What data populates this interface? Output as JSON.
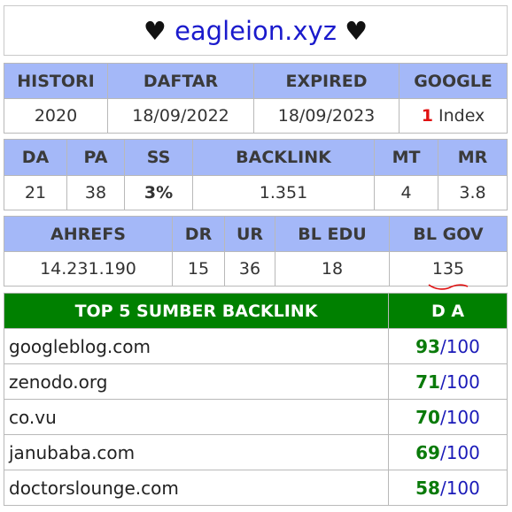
{
  "header": {
    "heart": "♥",
    "domain": "eagleion.xyz"
  },
  "table1": {
    "headers": [
      "HISTORI",
      "DAFTAR",
      "EXPIRED",
      "GOOGLE"
    ],
    "values": {
      "histori": "2020",
      "daftar": "18/09/2022",
      "expired": "18/09/2023",
      "google_count": "1",
      "google_label": "Index"
    }
  },
  "table2": {
    "headers": [
      "DA",
      "PA",
      "SS",
      "BACKLINK",
      "MT",
      "MR"
    ],
    "values": {
      "da": "21",
      "pa": "38",
      "ss": "3%",
      "backlink": "1.351",
      "mt": "4",
      "mr": "3.8"
    }
  },
  "table3": {
    "headers": [
      "AHREFS",
      "DR",
      "UR",
      "BL EDU",
      "BL GOV"
    ],
    "values": {
      "ahrefs": "14.231.190",
      "dr": "15",
      "ur": "36",
      "bl_edu": "18",
      "bl_gov": "135"
    }
  },
  "top_backlinks": {
    "title": "TOP 5 SUMBER BACKLINK",
    "da_header": "D A",
    "denominator": "/100",
    "rows": [
      {
        "site": "googleblog.com",
        "da": "93"
      },
      {
        "site": "zenodo.org",
        "da": "71"
      },
      {
        "site": "co.vu",
        "da": "70"
      },
      {
        "site": "janubaba.com",
        "da": "69"
      },
      {
        "site": "doctorslounge.com",
        "da": "58"
      }
    ]
  },
  "colors": {
    "header_bg": "#a4b8f8",
    "green_header": "#008000",
    "domain": "#1a1acc",
    "da_value": "#0a7a0a",
    "google_count": "#e01010"
  }
}
